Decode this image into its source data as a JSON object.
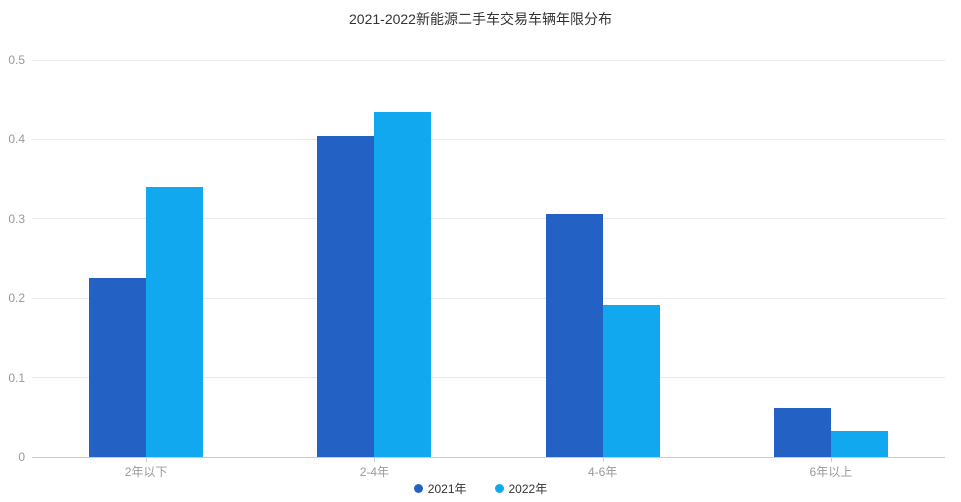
{
  "meta": {
    "background_color": "#ffffff",
    "accent_colors": {
      "series_2021": "#2361c4",
      "series_2022": "#12a8f0"
    }
  },
  "chart_data": {
    "type": "bar",
    "title": "2021-2022新能源二手车交易车辆年限分布",
    "categories": [
      "2年以下",
      "2-4年",
      "4-6年",
      "6年以上"
    ],
    "series": [
      {
        "name": "2021年",
        "color": "#2361c4",
        "values": [
          0.225,
          0.404,
          0.306,
          0.062
        ]
      },
      {
        "name": "2022年",
        "color": "#12a8f0",
        "values": [
          0.34,
          0.434,
          0.191,
          0.033
        ]
      }
    ],
    "xlabel": "",
    "ylabel": "",
    "ylim": [
      0,
      0.5
    ],
    "ytick_step": 0.1,
    "ytick_labels": [
      "0",
      "0.1",
      "0.2",
      "0.3",
      "0.4",
      "0.5"
    ],
    "grid": true,
    "legend_position": "bottom-center",
    "style": {
      "gridline_color": "#e9e9e9",
      "axis_line_color": "#cccccc",
      "axis_label_color": "#999999",
      "legend_text_color": "#333333",
      "title_color": "#333333"
    }
  }
}
